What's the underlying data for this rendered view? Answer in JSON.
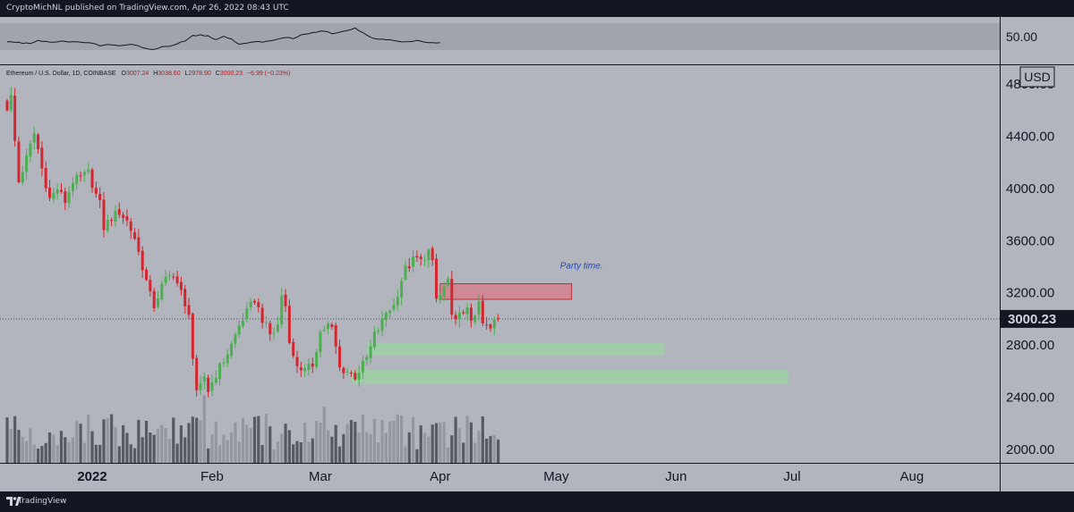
{
  "header": {
    "publisher_line": "CryptoMichNL published on TradingView.com, Apr 26, 2022 08:43 UTC"
  },
  "footer": {
    "brand": "TradingView"
  },
  "colors": {
    "background": "#131722",
    "pane": "#b2b5be",
    "up": "#26a69a",
    "down": "#ef5350",
    "text": "#131722",
    "annotation": "#1848cc",
    "resistance_zone": "#d4808e",
    "support_zone": "#9ed0a4"
  },
  "chart_data": [
    {
      "type": "line",
      "pane": "oscillator",
      "ylabel": "",
      "ylim": [
        20,
        80
      ],
      "tick_labels": [
        "50.00"
      ],
      "x_index_range": [
        0,
        112
      ],
      "y_anchors": [
        [
          0,
          49
        ],
        [
          2,
          48
        ],
        [
          4,
          47
        ],
        [
          6,
          47
        ],
        [
          8,
          50
        ],
        [
          10,
          49
        ],
        [
          12,
          48
        ],
        [
          14,
          49
        ],
        [
          16,
          48
        ],
        [
          18,
          49
        ],
        [
          20,
          47
        ],
        [
          22,
          47
        ],
        [
          24,
          44
        ],
        [
          26,
          45
        ],
        [
          28,
          44
        ],
        [
          30,
          44
        ],
        [
          32,
          46
        ],
        [
          34,
          43
        ],
        [
          36,
          40
        ],
        [
          38,
          39
        ],
        [
          40,
          42
        ],
        [
          42,
          43
        ],
        [
          44,
          46
        ],
        [
          46,
          50
        ],
        [
          48,
          56
        ],
        [
          50,
          57
        ],
        [
          52,
          56
        ],
        [
          54,
          51
        ],
        [
          56,
          55
        ],
        [
          58,
          52
        ],
        [
          60,
          45
        ],
        [
          62,
          47
        ],
        [
          64,
          49
        ],
        [
          66,
          48
        ],
        [
          68,
          50
        ],
        [
          70,
          52
        ],
        [
          72,
          54
        ],
        [
          74,
          53
        ],
        [
          76,
          57
        ],
        [
          78,
          59
        ],
        [
          80,
          61
        ],
        [
          82,
          62
        ],
        [
          84,
          59
        ],
        [
          86,
          61
        ],
        [
          88,
          63
        ],
        [
          90,
          66
        ],
        [
          92,
          60
        ],
        [
          94,
          54
        ],
        [
          96,
          52
        ],
        [
          98,
          51
        ],
        [
          100,
          50
        ],
        [
          102,
          48
        ],
        [
          104,
          49
        ],
        [
          106,
          50
        ],
        [
          108,
          48
        ],
        [
          110,
          47
        ],
        [
          112,
          48
        ]
      ]
    },
    {
      "type": "candlestick",
      "pane": "price",
      "symbol_line": "Ethereum / U.S. Dollar, 1D, COINBASE",
      "ohlc_readout": [
        {
          "label": "O",
          "value": "3007.24"
        },
        {
          "label": "H",
          "value": "3038.60"
        },
        {
          "label": "L",
          "value": "2978.90"
        },
        {
          "label": "C",
          "value": "3000.23"
        }
      ],
      "change": "−6.99 (−0.23%)",
      "currency": "USD",
      "ylim": [
        1900,
        4850
      ],
      "y_ticks": [
        2000,
        2400,
        2800,
        3200,
        3600,
        4000,
        4400,
        4800
      ],
      "y_tick_labels": [
        "2000.00",
        "2400.00",
        "2800.00",
        "3200.00",
        "3600.00",
        "4000.00",
        "4400.00",
        "4800.00"
      ],
      "last_price": 3000.23,
      "last_price_label": "3000.23",
      "x_labels": [
        {
          "label": "2022",
          "index": 22,
          "bold": true
        },
        {
          "label": "Feb",
          "index": 53
        },
        {
          "label": "Mar",
          "index": 81
        },
        {
          "label": "Apr",
          "index": 112
        },
        {
          "label": "May",
          "index": 142
        },
        {
          "label": "Jun",
          "index": 173
        },
        {
          "label": "Jul",
          "index": 203
        },
        {
          "label": "Aug",
          "index": 234
        }
      ],
      "x_index_range": [
        0,
        250
      ],
      "close_anchors": [
        [
          0,
          4620
        ],
        [
          1,
          4700
        ],
        [
          2,
          4360
        ],
        [
          3,
          4050
        ],
        [
          5,
          4230
        ],
        [
          7,
          4420
        ],
        [
          8,
          4300
        ],
        [
          9,
          4150
        ],
        [
          11,
          3920
        ],
        [
          13,
          4000
        ],
        [
          15,
          3900
        ],
        [
          17,
          4060
        ],
        [
          19,
          4080
        ],
        [
          21,
          4120
        ],
        [
          23,
          3950
        ],
        [
          24,
          3880
        ],
        [
          25,
          3700
        ],
        [
          27,
          3780
        ],
        [
          29,
          3820
        ],
        [
          31,
          3750
        ],
        [
          33,
          3620
        ],
        [
          35,
          3400
        ],
        [
          37,
          3180
        ],
        [
          38,
          3100
        ],
        [
          40,
          3250
        ],
        [
          41,
          3300
        ],
        [
          43,
          3350
        ],
        [
          45,
          3200
        ],
        [
          46,
          3080
        ],
        [
          47,
          3060
        ],
        [
          48,
          2700
        ],
        [
          49,
          2420
        ],
        [
          50,
          2480
        ],
        [
          51,
          2560
        ],
        [
          52,
          2450
        ],
        [
          54,
          2580
        ],
        [
          56,
          2680
        ],
        [
          58,
          2800
        ],
        [
          60,
          2950
        ],
        [
          62,
          3050
        ],
        [
          64,
          3150
        ],
        [
          66,
          3000
        ],
        [
          68,
          2880
        ],
        [
          69,
          2900
        ],
        [
          70,
          2950
        ],
        [
          71,
          3180
        ],
        [
          72,
          3100
        ],
        [
          73,
          2850
        ],
        [
          74,
          2700
        ],
        [
          75,
          2650
        ],
        [
          77,
          2600
        ],
        [
          79,
          2650
        ],
        [
          81,
          2900
        ],
        [
          83,
          2950
        ],
        [
          84,
          2920
        ],
        [
          85,
          2780
        ],
        [
          86,
          2620
        ],
        [
          88,
          2600
        ],
        [
          90,
          2560
        ],
        [
          92,
          2650
        ],
        [
          93,
          2700
        ],
        [
          94,
          2780
        ],
        [
          95,
          2880
        ],
        [
          96,
          2920
        ],
        [
          97,
          2980
        ],
        [
          98,
          3050
        ],
        [
          99,
          3080
        ],
        [
          100,
          3100
        ],
        [
          101,
          3200
        ],
        [
          102,
          3300
        ],
        [
          103,
          3380
        ],
        [
          104,
          3410
        ],
        [
          105,
          3450
        ],
        [
          106,
          3460
        ],
        [
          107,
          3440
        ],
        [
          108,
          3480
        ],
        [
          109,
          3520
        ],
        [
          110,
          3420
        ],
        [
          111,
          3150
        ],
        [
          112,
          3180
        ],
        [
          113,
          3240
        ],
        [
          114,
          3300
        ],
        [
          115,
          3000
        ],
        [
          116,
          2970
        ],
        [
          117,
          3080
        ],
        [
          118,
          3020
        ],
        [
          119,
          3060
        ],
        [
          120,
          3000
        ],
        [
          121,
          3050
        ],
        [
          122,
          3100
        ],
        [
          123,
          2960
        ],
        [
          124,
          2940
        ],
        [
          125,
          2920
        ],
        [
          126,
          2980
        ],
        [
          127,
          3000
        ]
      ],
      "zones": [
        {
          "name": "resistance",
          "x_index": [
            112,
            146
          ],
          "price": [
            3150,
            3270
          ]
        },
        {
          "name": "support",
          "x_index": [
            93,
            170
          ],
          "price": [
            2720,
            2820
          ]
        },
        {
          "name": "support",
          "x_index": [
            89,
            202
          ],
          "price": [
            2500,
            2610
          ]
        }
      ],
      "annotations": [
        {
          "text": "Party time.",
          "x_index": 143,
          "price": 3385
        }
      ]
    }
  ]
}
